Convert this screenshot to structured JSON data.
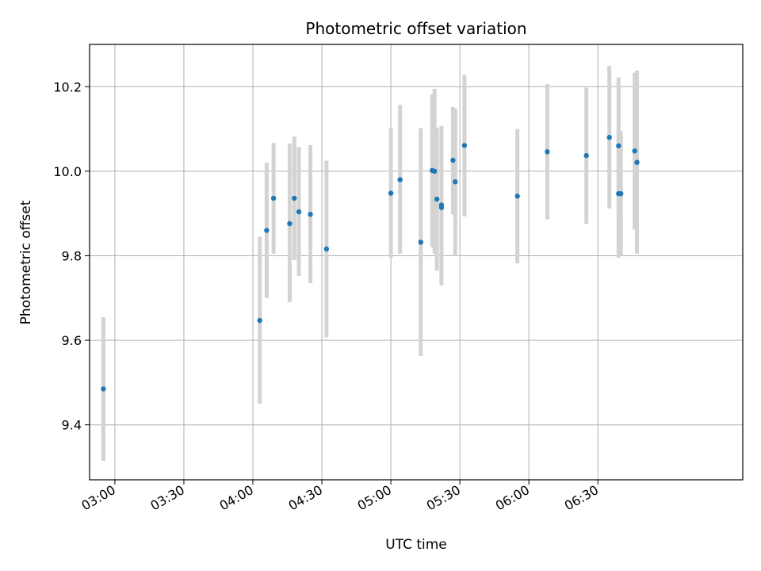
{
  "chart_data": {
    "type": "scatter",
    "title": "Photometric offset variation",
    "xlabel": "UTC time",
    "ylabel": "Photometric offset",
    "x_unit": "UTC",
    "xlim": [
      "02:49",
      "07:33"
    ],
    "ylim": [
      9.27,
      10.3
    ],
    "x_ticks": [
      "03:00",
      "03:30",
      "04:00",
      "04:30",
      "05:00",
      "05:30",
      "06:00",
      "06:30"
    ],
    "y_ticks": [
      9.4,
      9.6,
      9.8,
      10.0,
      10.2
    ],
    "grid": true,
    "marker_color": "#1f77b4",
    "errorbar_color": "#d3d3d3",
    "points": [
      {
        "x": "02:55",
        "y": 9.485,
        "low": 9.315,
        "high": 9.655
      },
      {
        "x": "04:03",
        "y": 9.647,
        "low": 9.45,
        "high": 9.845
      },
      {
        "x": "04:06",
        "y": 9.86,
        "low": 9.7,
        "high": 10.02
      },
      {
        "x": "04:09",
        "y": 9.936,
        "low": 9.805,
        "high": 10.067
      },
      {
        "x": "04:16",
        "y": 9.876,
        "low": 9.69,
        "high": 10.065
      },
      {
        "x": "04:18",
        "y": 9.936,
        "low": 9.79,
        "high": 10.082
      },
      {
        "x": "04:20",
        "y": 9.904,
        "low": 9.752,
        "high": 10.057
      },
      {
        "x": "04:25",
        "y": 9.898,
        "low": 9.735,
        "high": 10.062
      },
      {
        "x": "04:32",
        "y": 9.816,
        "low": 9.607,
        "high": 10.025
      },
      {
        "x": "05:00",
        "y": 9.948,
        "low": 9.795,
        "high": 10.102
      },
      {
        "x": "05:04",
        "y": 9.98,
        "low": 9.805,
        "high": 10.157
      },
      {
        "x": "05:13",
        "y": 9.832,
        "low": 9.563,
        "high": 10.102
      },
      {
        "x": "05:18",
        "y": 10.002,
        "low": 9.82,
        "high": 10.182
      },
      {
        "x": "05:19",
        "y": 10.0,
        "low": 9.805,
        "high": 10.195
      },
      {
        "x": "05:20",
        "y": 9.934,
        "low": 9.765,
        "high": 10.103
      },
      {
        "x": "05:22",
        "y": 9.92,
        "low": 9.73,
        "high": 10.107
      },
      {
        "x": "05:22",
        "y": 9.914,
        "low": 9.74,
        "high": 10.085
      },
      {
        "x": "05:27",
        "y": 10.026,
        "low": 9.898,
        "high": 10.152
      },
      {
        "x": "05:28",
        "y": 9.975,
        "low": 9.8,
        "high": 10.148
      },
      {
        "x": "05:32",
        "y": 10.061,
        "low": 9.893,
        "high": 10.228
      },
      {
        "x": "05:55",
        "y": 9.941,
        "low": 9.782,
        "high": 10.1
      },
      {
        "x": "06:08",
        "y": 10.046,
        "low": 9.886,
        "high": 10.206
      },
      {
        "x": "06:25",
        "y": 10.037,
        "low": 9.875,
        "high": 10.198
      },
      {
        "x": "06:35",
        "y": 10.08,
        "low": 9.912,
        "high": 10.249
      },
      {
        "x": "06:39",
        "y": 10.06,
        "low": 9.897,
        "high": 10.222
      },
      {
        "x": "06:39",
        "y": 9.947,
        "low": 9.795,
        "high": 10.097
      },
      {
        "x": "06:40",
        "y": 9.947,
        "low": 9.8,
        "high": 10.095
      },
      {
        "x": "06:46",
        "y": 10.048,
        "low": 9.862,
        "high": 10.233
      },
      {
        "x": "06:47",
        "y": 10.021,
        "low": 9.805,
        "high": 10.238
      }
    ]
  }
}
